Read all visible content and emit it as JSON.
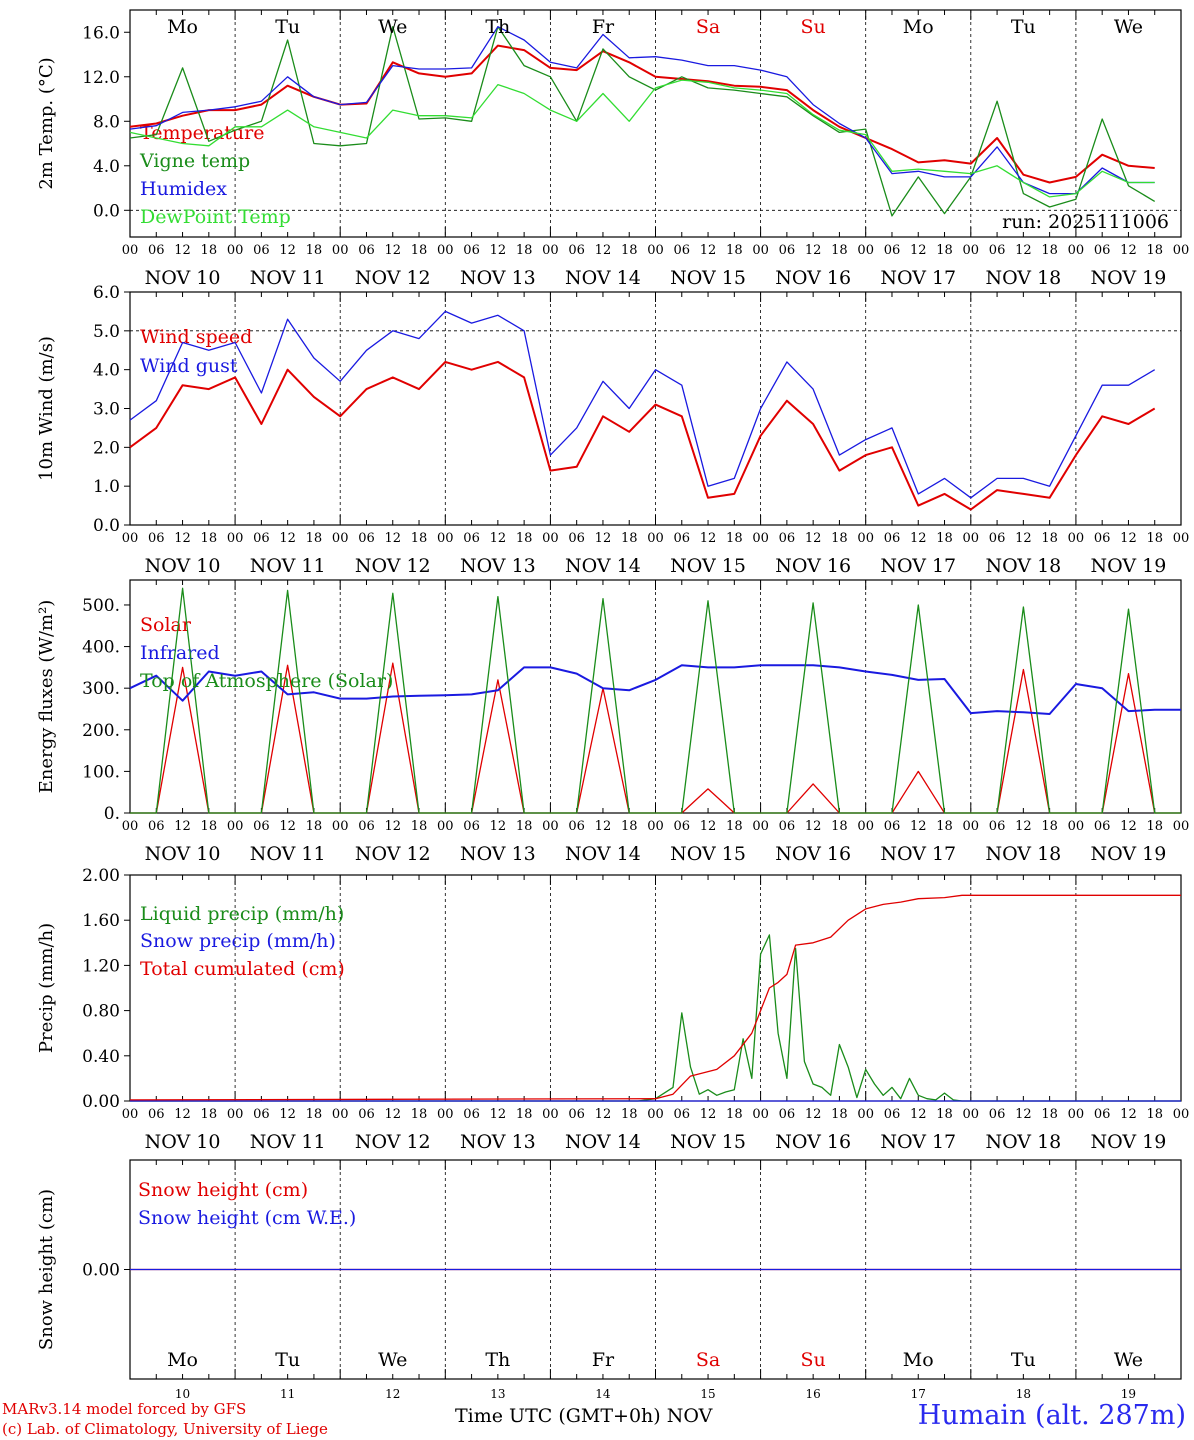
{
  "run_label": "run: 2025111006",
  "days": [
    "Mo",
    "Tu",
    "We",
    "Th",
    "Fr",
    "Sa",
    "Su",
    "Mo",
    "Tu",
    "We"
  ],
  "day_colors": [
    "#000000",
    "#000000",
    "#000000",
    "#000000",
    "#000000",
    "#e00000",
    "#e00000",
    "#000000",
    "#000000",
    "#000000"
  ],
  "dates": [
    "NOV 10",
    "NOV 11",
    "NOV 12",
    "NOV 13",
    "NOV 14",
    "NOV 15",
    "NOV 16",
    "NOV 17",
    "NOV 18",
    "NOV 19"
  ],
  "hour_ticks": [
    "00",
    "06",
    "12",
    "18"
  ],
  "last_hour_tick": "00",
  "day_numbers": [
    "10",
    "11",
    "12",
    "13",
    "14",
    "15",
    "16",
    "17",
    "18",
    "19"
  ],
  "x_axis_title": "Time UTC (GMT+0h)",
  "x_axis_unit": "NOV",
  "footer": {
    "credit_model": "MARv3.14 model forced by GFS",
    "credit_lab": "(c) Lab. of Climatology, University of Liege",
    "station": "Humain (alt. 287m)"
  },
  "colors": {
    "red": "#e00000",
    "green": "#1a8c1a",
    "blue": "#1a1ae0",
    "lightgreen": "#33dd33"
  },
  "chart_data": [
    {
      "type": "line",
      "ylabel": "2m Temp. (°C)",
      "ylim": [
        -2.4,
        18.0
      ],
      "yticks": [
        "0.0",
        "4.0",
        "8.0",
        "12.0",
        "16.0"
      ],
      "ytick_values": [
        0,
        4,
        8,
        12,
        16
      ],
      "dashed_y": [
        0
      ],
      "x_hours": [
        0,
        6,
        12,
        18,
        24,
        30,
        36,
        42,
        48,
        54,
        60,
        66,
        72,
        78,
        84,
        90,
        96,
        102,
        108,
        114,
        120,
        126,
        132,
        138,
        144,
        150,
        156,
        162,
        168,
        174,
        180,
        186,
        192,
        198,
        204,
        210,
        216,
        222,
        228,
        234
      ],
      "series": [
        {
          "name": "Temperature",
          "color": "red",
          "values": [
            7.5,
            7.8,
            8.5,
            9.0,
            9.0,
            9.5,
            11.2,
            10.2,
            9.5,
            9.6,
            13.3,
            12.3,
            12.0,
            12.3,
            14.8,
            14.4,
            12.8,
            12.6,
            14.3,
            13.3,
            12.0,
            11.8,
            11.6,
            11.2,
            11.1,
            10.8,
            9.0,
            7.5,
            6.5,
            5.5,
            4.3,
            4.5,
            4.2,
            6.5,
            3.2,
            2.5,
            3.0,
            5.0,
            4.0,
            3.8
          ]
        },
        {
          "name": "Vigne temp",
          "color": "green",
          "values": [
            6.5,
            6.8,
            12.8,
            6.2,
            7.2,
            8.0,
            15.3,
            6.0,
            5.8,
            6.0,
            16.5,
            8.2,
            8.3,
            8.0,
            16.5,
            13.0,
            12.0,
            8.0,
            14.5,
            12.0,
            10.8,
            12.0,
            11.0,
            10.8,
            10.5,
            10.2,
            8.5,
            7.0,
            7.3,
            -0.5,
            3.0,
            -0.3,
            3.0,
            9.8,
            1.5,
            0.3,
            1.0,
            8.2,
            2.2,
            0.8
          ]
        },
        {
          "name": "Humidex",
          "color": "blue",
          "values": [
            7.3,
            7.6,
            8.8,
            9.0,
            9.3,
            9.8,
            12.0,
            10.2,
            9.5,
            9.7,
            13.0,
            12.7,
            12.7,
            12.8,
            16.5,
            15.3,
            13.3,
            12.8,
            15.8,
            13.7,
            13.8,
            13.5,
            13.0,
            13.0,
            12.6,
            12.0,
            9.5,
            7.8,
            6.5,
            3.3,
            3.5,
            3.0,
            3.0,
            5.7,
            2.5,
            1.5,
            1.5,
            3.8,
            2.5,
            2.5
          ]
        },
        {
          "name": "DewPoint Temp",
          "color": "lightgreen",
          "values": [
            7.0,
            6.5,
            6.0,
            5.8,
            7.5,
            7.5,
            9.0,
            7.5,
            7.0,
            6.5,
            9.0,
            8.5,
            8.5,
            8.3,
            11.3,
            10.5,
            9.0,
            8.0,
            10.5,
            8.0,
            11.0,
            11.7,
            11.5,
            11.0,
            10.8,
            10.5,
            8.6,
            7.2,
            6.8,
            3.5,
            3.7,
            3.5,
            3.3,
            4.0,
            2.5,
            1.2,
            1.5,
            3.5,
            2.5,
            2.5
          ]
        }
      ]
    },
    {
      "type": "line",
      "ylabel": "10m Wind (m/s)",
      "ylim": [
        0,
        6.0
      ],
      "yticks": [
        "0.0",
        "1.0",
        "2.0",
        "3.0",
        "4.0",
        "5.0",
        "6.0"
      ],
      "ytick_values": [
        0,
        1,
        2,
        3,
        4,
        5,
        6
      ],
      "dashed_y": [
        5
      ],
      "x_hours": [
        0,
        6,
        12,
        18,
        24,
        30,
        36,
        42,
        48,
        54,
        60,
        66,
        72,
        78,
        84,
        90,
        96,
        102,
        108,
        114,
        120,
        126,
        132,
        138,
        144,
        150,
        156,
        162,
        168,
        174,
        180,
        186,
        192,
        198,
        204,
        210,
        216,
        222,
        228,
        234
      ],
      "series": [
        {
          "name": "Wind speed",
          "color": "red",
          "values": [
            2.0,
            2.5,
            3.6,
            3.5,
            3.8,
            2.6,
            4.0,
            3.3,
            2.8,
            3.5,
            3.8,
            3.5,
            4.2,
            4.0,
            4.2,
            3.8,
            1.4,
            1.5,
            2.8,
            2.4,
            3.1,
            2.8,
            0.7,
            0.8,
            2.3,
            3.2,
            2.6,
            1.4,
            1.8,
            2.0,
            0.5,
            0.8,
            0.4,
            0.9,
            0.8,
            0.7,
            1.8,
            2.8,
            2.6,
            3.0
          ]
        },
        {
          "name": "Wind gust",
          "color": "blue",
          "values": [
            2.7,
            3.2,
            4.7,
            4.5,
            4.7,
            3.4,
            5.3,
            4.3,
            3.7,
            4.5,
            5.0,
            4.8,
            5.5,
            5.2,
            5.4,
            5.0,
            1.8,
            2.5,
            3.7,
            3.0,
            4.0,
            3.6,
            1.0,
            1.2,
            3.0,
            4.2,
            3.5,
            1.8,
            2.2,
            2.5,
            0.8,
            1.2,
            0.7,
            1.2,
            1.2,
            1.0,
            2.3,
            3.6,
            3.6,
            4.0
          ]
        }
      ]
    },
    {
      "type": "line",
      "ylabel": "Energy fluxes (W/m²)",
      "ylim": [
        0,
        560
      ],
      "yticks": [
        "0.",
        "100.",
        "200.",
        "300.",
        "400.",
        "500."
      ],
      "ytick_values": [
        0,
        100,
        200,
        300,
        400,
        500
      ],
      "dashed_y": [],
      "diurnal_x_hours": [
        6,
        9,
        12,
        15,
        18
      ],
      "series": [
        {
          "name": "Solar",
          "color": "red",
          "diurnal_peaks": [
            350,
            355,
            360,
            320,
            300,
            58,
            70,
            100,
            345,
            335
          ]
        },
        {
          "name": "Infrared",
          "color": "blue",
          "x_hours": [
            0,
            6,
            12,
            18,
            24,
            30,
            36,
            42,
            48,
            54,
            60,
            66,
            72,
            78,
            84,
            90,
            96,
            102,
            108,
            114,
            120,
            126,
            132,
            138,
            144,
            150,
            156,
            162,
            168,
            174,
            180,
            186,
            192,
            198,
            204,
            210,
            216,
            222,
            228,
            234,
            240
          ],
          "values": [
            300,
            330,
            270,
            340,
            330,
            340,
            285,
            290,
            275,
            275,
            280,
            282,
            283,
            285,
            295,
            350,
            350,
            335,
            300,
            295,
            320,
            355,
            350,
            350,
            355,
            355,
            355,
            350,
            340,
            332,
            320,
            322,
            240,
            245,
            242,
            238,
            310,
            300,
            245,
            248,
            248
          ]
        },
        {
          "name": "Top of Atmosphere (Solar)",
          "color": "green",
          "diurnal_peaks": [
            540,
            535,
            528,
            520,
            515,
            510,
            505,
            500,
            495,
            490
          ]
        }
      ]
    },
    {
      "type": "line",
      "ylabel": "Precip (mm/h)",
      "ylim": [
        0,
        2.0
      ],
      "yticks": [
        "0.00",
        "0.40",
        "0.80",
        "1.20",
        "1.60",
        "2.00"
      ],
      "ytick_values": [
        0,
        0.4,
        0.8,
        1.2,
        1.6,
        2.0
      ],
      "dashed_y": [],
      "series": [
        {
          "name": "Liquid precip (mm/h)",
          "color": "green",
          "x_hours": [
            0,
            116,
            120,
            124,
            126,
            128,
            130,
            132,
            134,
            136,
            138,
            140,
            142,
            144,
            146,
            148,
            150,
            152,
            154,
            156,
            158,
            160,
            162,
            164,
            166,
            168,
            170,
            172,
            174,
            176,
            178,
            180,
            182,
            184,
            186,
            188,
            190,
            240
          ],
          "values": [
            0,
            0,
            0.02,
            0.12,
            0.78,
            0.3,
            0.06,
            0.1,
            0.05,
            0.08,
            0.1,
            0.55,
            0.2,
            1.3,
            1.47,
            0.6,
            0.2,
            1.35,
            0.35,
            0.15,
            0.12,
            0.05,
            0.5,
            0.3,
            0.03,
            0.28,
            0.15,
            0.05,
            0.12,
            0.02,
            0.2,
            0.05,
            0.02,
            0.01,
            0.07,
            0.01,
            0,
            0
          ]
        },
        {
          "name": "Snow precip (mm/h)",
          "color": "blue",
          "x_hours": [
            0,
            240
          ],
          "values": [
            0,
            0
          ]
        },
        {
          "name": "Total cumulated (cm)",
          "color": "red",
          "x_hours": [
            0,
            120,
            124,
            128,
            134,
            138,
            142,
            144,
            146,
            148,
            150,
            152,
            156,
            160,
            164,
            168,
            172,
            176,
            180,
            186,
            190,
            240
          ],
          "values": [
            0.01,
            0.02,
            0.06,
            0.22,
            0.28,
            0.4,
            0.6,
            0.8,
            1.0,
            1.05,
            1.12,
            1.38,
            1.4,
            1.45,
            1.6,
            1.7,
            1.74,
            1.76,
            1.79,
            1.8,
            1.82,
            1.82
          ]
        }
      ]
    },
    {
      "type": "line",
      "ylabel": "Snow height (cm)",
      "ylim": [
        -1.0,
        1.0
      ],
      "yticks": [
        "0.00"
      ],
      "ytick_values": [
        0
      ],
      "dashed_y": [],
      "series": [
        {
          "name": "Snow height (cm)",
          "color": "red",
          "x_hours": [
            0,
            240
          ],
          "values": [
            0,
            0
          ]
        },
        {
          "name": "Snow height (cm W.E.)",
          "color": "blue",
          "x_hours": [
            0,
            240
          ],
          "values": [
            0,
            0
          ]
        }
      ]
    }
  ]
}
